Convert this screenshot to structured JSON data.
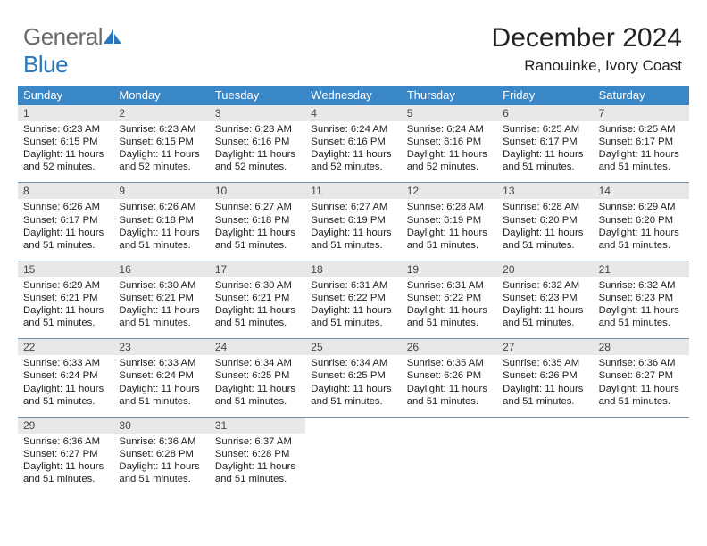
{
  "brand": {
    "word1": "General",
    "word2": "Blue"
  },
  "title": "December 2024",
  "location": "Ranouinke, Ivory Coast",
  "colors": {
    "header_bg": "#3a87c8",
    "date_bar_bg": "#e8e8e8",
    "week_divider": "#6893b7",
    "logo_gray": "#6b6b6b",
    "logo_blue": "#2a77bd"
  },
  "day_names": [
    "Sunday",
    "Monday",
    "Tuesday",
    "Wednesday",
    "Thursday",
    "Friday",
    "Saturday"
  ],
  "weeks": [
    [
      {
        "date": "1",
        "sunrise": "Sunrise: 6:23 AM",
        "sunset": "Sunset: 6:15 PM",
        "daylight": "Daylight: 11 hours and 52 minutes."
      },
      {
        "date": "2",
        "sunrise": "Sunrise: 6:23 AM",
        "sunset": "Sunset: 6:15 PM",
        "daylight": "Daylight: 11 hours and 52 minutes."
      },
      {
        "date": "3",
        "sunrise": "Sunrise: 6:23 AM",
        "sunset": "Sunset: 6:16 PM",
        "daylight": "Daylight: 11 hours and 52 minutes."
      },
      {
        "date": "4",
        "sunrise": "Sunrise: 6:24 AM",
        "sunset": "Sunset: 6:16 PM",
        "daylight": "Daylight: 11 hours and 52 minutes."
      },
      {
        "date": "5",
        "sunrise": "Sunrise: 6:24 AM",
        "sunset": "Sunset: 6:16 PM",
        "daylight": "Daylight: 11 hours and 52 minutes."
      },
      {
        "date": "6",
        "sunrise": "Sunrise: 6:25 AM",
        "sunset": "Sunset: 6:17 PM",
        "daylight": "Daylight: 11 hours and 51 minutes."
      },
      {
        "date": "7",
        "sunrise": "Sunrise: 6:25 AM",
        "sunset": "Sunset: 6:17 PM",
        "daylight": "Daylight: 11 hours and 51 minutes."
      }
    ],
    [
      {
        "date": "8",
        "sunrise": "Sunrise: 6:26 AM",
        "sunset": "Sunset: 6:17 PM",
        "daylight": "Daylight: 11 hours and 51 minutes."
      },
      {
        "date": "9",
        "sunrise": "Sunrise: 6:26 AM",
        "sunset": "Sunset: 6:18 PM",
        "daylight": "Daylight: 11 hours and 51 minutes."
      },
      {
        "date": "10",
        "sunrise": "Sunrise: 6:27 AM",
        "sunset": "Sunset: 6:18 PM",
        "daylight": "Daylight: 11 hours and 51 minutes."
      },
      {
        "date": "11",
        "sunrise": "Sunrise: 6:27 AM",
        "sunset": "Sunset: 6:19 PM",
        "daylight": "Daylight: 11 hours and 51 minutes."
      },
      {
        "date": "12",
        "sunrise": "Sunrise: 6:28 AM",
        "sunset": "Sunset: 6:19 PM",
        "daylight": "Daylight: 11 hours and 51 minutes."
      },
      {
        "date": "13",
        "sunrise": "Sunrise: 6:28 AM",
        "sunset": "Sunset: 6:20 PM",
        "daylight": "Daylight: 11 hours and 51 minutes."
      },
      {
        "date": "14",
        "sunrise": "Sunrise: 6:29 AM",
        "sunset": "Sunset: 6:20 PM",
        "daylight": "Daylight: 11 hours and 51 minutes."
      }
    ],
    [
      {
        "date": "15",
        "sunrise": "Sunrise: 6:29 AM",
        "sunset": "Sunset: 6:21 PM",
        "daylight": "Daylight: 11 hours and 51 minutes."
      },
      {
        "date": "16",
        "sunrise": "Sunrise: 6:30 AM",
        "sunset": "Sunset: 6:21 PM",
        "daylight": "Daylight: 11 hours and 51 minutes."
      },
      {
        "date": "17",
        "sunrise": "Sunrise: 6:30 AM",
        "sunset": "Sunset: 6:21 PM",
        "daylight": "Daylight: 11 hours and 51 minutes."
      },
      {
        "date": "18",
        "sunrise": "Sunrise: 6:31 AM",
        "sunset": "Sunset: 6:22 PM",
        "daylight": "Daylight: 11 hours and 51 minutes."
      },
      {
        "date": "19",
        "sunrise": "Sunrise: 6:31 AM",
        "sunset": "Sunset: 6:22 PM",
        "daylight": "Daylight: 11 hours and 51 minutes."
      },
      {
        "date": "20",
        "sunrise": "Sunrise: 6:32 AM",
        "sunset": "Sunset: 6:23 PM",
        "daylight": "Daylight: 11 hours and 51 minutes."
      },
      {
        "date": "21",
        "sunrise": "Sunrise: 6:32 AM",
        "sunset": "Sunset: 6:23 PM",
        "daylight": "Daylight: 11 hours and 51 minutes."
      }
    ],
    [
      {
        "date": "22",
        "sunrise": "Sunrise: 6:33 AM",
        "sunset": "Sunset: 6:24 PM",
        "daylight": "Daylight: 11 hours and 51 minutes."
      },
      {
        "date": "23",
        "sunrise": "Sunrise: 6:33 AM",
        "sunset": "Sunset: 6:24 PM",
        "daylight": "Daylight: 11 hours and 51 minutes."
      },
      {
        "date": "24",
        "sunrise": "Sunrise: 6:34 AM",
        "sunset": "Sunset: 6:25 PM",
        "daylight": "Daylight: 11 hours and 51 minutes."
      },
      {
        "date": "25",
        "sunrise": "Sunrise: 6:34 AM",
        "sunset": "Sunset: 6:25 PM",
        "daylight": "Daylight: 11 hours and 51 minutes."
      },
      {
        "date": "26",
        "sunrise": "Sunrise: 6:35 AM",
        "sunset": "Sunset: 6:26 PM",
        "daylight": "Daylight: 11 hours and 51 minutes."
      },
      {
        "date": "27",
        "sunrise": "Sunrise: 6:35 AM",
        "sunset": "Sunset: 6:26 PM",
        "daylight": "Daylight: 11 hours and 51 minutes."
      },
      {
        "date": "28",
        "sunrise": "Sunrise: 6:36 AM",
        "sunset": "Sunset: 6:27 PM",
        "daylight": "Daylight: 11 hours and 51 minutes."
      }
    ],
    [
      {
        "date": "29",
        "sunrise": "Sunrise: 6:36 AM",
        "sunset": "Sunset: 6:27 PM",
        "daylight": "Daylight: 11 hours and 51 minutes."
      },
      {
        "date": "30",
        "sunrise": "Sunrise: 6:36 AM",
        "sunset": "Sunset: 6:28 PM",
        "daylight": "Daylight: 11 hours and 51 minutes."
      },
      {
        "date": "31",
        "sunrise": "Sunrise: 6:37 AM",
        "sunset": "Sunset: 6:28 PM",
        "daylight": "Daylight: 11 hours and 51 minutes."
      },
      {
        "date": "",
        "sunrise": "",
        "sunset": "",
        "daylight": ""
      },
      {
        "date": "",
        "sunrise": "",
        "sunset": "",
        "daylight": ""
      },
      {
        "date": "",
        "sunrise": "",
        "sunset": "",
        "daylight": ""
      },
      {
        "date": "",
        "sunrise": "",
        "sunset": "",
        "daylight": ""
      }
    ]
  ]
}
